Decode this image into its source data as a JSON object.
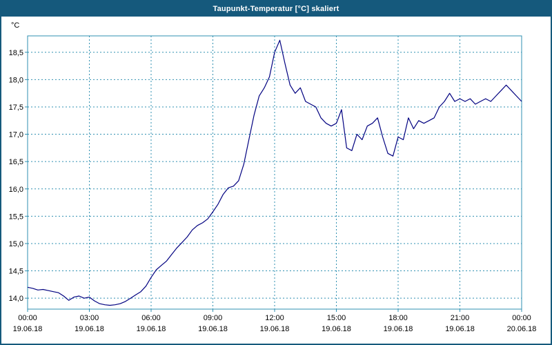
{
  "window": {
    "title": "Taupunkt-Temperatur [°C] skaliert"
  },
  "colors": {
    "titlebar_bg": "#15597C",
    "titlebar_text": "#FFFFFF",
    "frame": "#15597C",
    "grid": "#2E8FB0",
    "plot_border": "#2E8FB0",
    "line": "#000080",
    "axis_text": "#000000",
    "plot_bg": "#FFFFFF"
  },
  "chart_data": {
    "type": "line",
    "title": "Taupunkt-Temperatur [°C] skaliert",
    "xlabel": "",
    "ylabel": "°C",
    "series_name": "Taupunkt-Temperatur",
    "grid": true,
    "legend": "none",
    "xlim": [
      0,
      24
    ],
    "ylim": [
      13.8,
      18.8
    ],
    "x_tick_hours": [
      0,
      3,
      6,
      9,
      12,
      15,
      18,
      21,
      24
    ],
    "x_ticks": [
      {
        "time": "00:00",
        "date": "19.06.18"
      },
      {
        "time": "03:00",
        "date": "19.06.18"
      },
      {
        "time": "06:00",
        "date": "19.06.18"
      },
      {
        "time": "09:00",
        "date": "19.06.18"
      },
      {
        "time": "12:00",
        "date": "19.06.18"
      },
      {
        "time": "15:00",
        "date": "19.06.18"
      },
      {
        "time": "18:00",
        "date": "19.06.18"
      },
      {
        "time": "21:00",
        "date": "19.06.18"
      },
      {
        "time": "00:00",
        "date": "20.06.18"
      }
    ],
    "y_tick_values": [
      14.0,
      14.5,
      15.0,
      15.5,
      16.0,
      16.5,
      17.0,
      17.5,
      18.0,
      18.5
    ],
    "y_ticks": [
      "14,0",
      "14,5",
      "15,0",
      "15,5",
      "16,0",
      "16,5",
      "17,0",
      "17,5",
      "18,0",
      "18,5"
    ],
    "x_hours": [
      0,
      0.25,
      0.5,
      0.75,
      1,
      1.25,
      1.5,
      1.75,
      2,
      2.25,
      2.5,
      2.75,
      3,
      3.25,
      3.5,
      3.75,
      4,
      4.25,
      4.5,
      4.75,
      5,
      5.25,
      5.5,
      5.75,
      6,
      6.25,
      6.5,
      6.75,
      7,
      7.25,
      7.5,
      7.75,
      8,
      8.25,
      8.5,
      8.75,
      9,
      9.25,
      9.5,
      9.75,
      10,
      10.25,
      10.5,
      10.75,
      11,
      11.25,
      11.5,
      11.75,
      12,
      12.25,
      12.5,
      12.75,
      13,
      13.25,
      13.5,
      13.75,
      14,
      14.25,
      14.5,
      14.75,
      15,
      15.25,
      15.5,
      15.75,
      16,
      16.25,
      16.5,
      16.75,
      17,
      17.25,
      17.5,
      17.75,
      18,
      18.25,
      18.5,
      18.75,
      19,
      19.25,
      19.5,
      19.75,
      20,
      20.25,
      20.5,
      20.75,
      21,
      21.25,
      21.5,
      21.75,
      22,
      22.25,
      22.5,
      22.75,
      23,
      23.25,
      23.5,
      23.75,
      24
    ],
    "values": [
      14.2,
      14.18,
      14.15,
      14.16,
      14.14,
      14.12,
      14.1,
      14.04,
      13.96,
      14.02,
      14.04,
      14.0,
      14.02,
      13.95,
      13.9,
      13.88,
      13.87,
      13.88,
      13.9,
      13.94,
      14.0,
      14.06,
      14.12,
      14.22,
      14.38,
      14.52,
      14.6,
      14.68,
      14.8,
      14.92,
      15.02,
      15.12,
      15.25,
      15.33,
      15.38,
      15.45,
      15.58,
      15.72,
      15.9,
      16.02,
      16.05,
      16.15,
      16.45,
      16.9,
      17.35,
      17.7,
      17.85,
      18.05,
      18.5,
      18.72,
      18.3,
      17.9,
      17.75,
      17.85,
      17.6,
      17.55,
      17.5,
      17.3,
      17.2,
      17.15,
      17.2,
      17.45,
      16.75,
      16.7,
      17.0,
      16.9,
      17.15,
      17.2,
      17.3,
      16.95,
      16.65,
      16.6,
      16.95,
      16.9,
      17.3,
      17.1,
      17.25,
      17.2,
      17.25,
      17.3,
      17.5,
      17.6,
      17.75,
      17.6,
      17.65,
      17.6,
      17.65,
      17.55,
      17.6,
      17.65,
      17.6,
      17.7,
      17.8,
      17.9,
      17.8,
      17.7,
      17.6
    ]
  }
}
